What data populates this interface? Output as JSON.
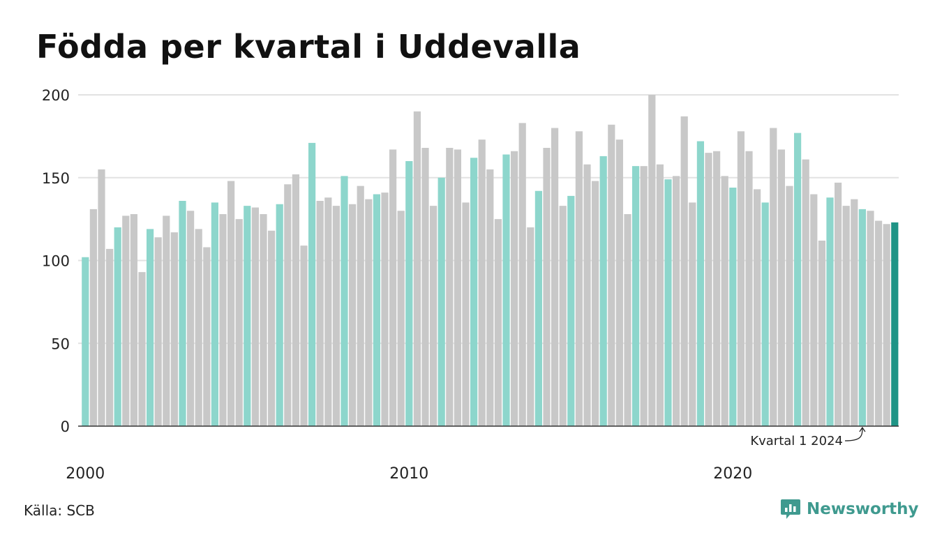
{
  "title": "Födda per kvartal i Uddevalla",
  "source": "Källa: SCB",
  "brand": {
    "name": "Newsworthy",
    "icon": "bar-chart-speech-icon"
  },
  "colors": {
    "q1": "#8dd6cc",
    "other": "#c8c8c8",
    "latest": "#1f9486",
    "grid": "#e2e2e2",
    "axis": "#333333",
    "brand": "#3f9a8f"
  },
  "chart_data": {
    "type": "bar",
    "title": "Födda per kvartal i Uddevalla",
    "xlabel": "",
    "ylabel": "",
    "ylim": [
      0,
      200
    ],
    "yticks": [
      0,
      50,
      100,
      150,
      200
    ],
    "xticks": [
      "2000",
      "2010",
      "2020"
    ],
    "grid": true,
    "highlight": "first quarter of each year; latest quarter emphasized",
    "start_year": 2000,
    "values": [
      102,
      131,
      155,
      107,
      120,
      127,
      128,
      93,
      119,
      114,
      127,
      117,
      136,
      130,
      119,
      108,
      135,
      128,
      148,
      125,
      133,
      132,
      128,
      118,
      134,
      146,
      152,
      109,
      171,
      136,
      138,
      133,
      151,
      134,
      145,
      137,
      140,
      141,
      167,
      130,
      160,
      190,
      168,
      133,
      150,
      168,
      167,
      135,
      162,
      173,
      155,
      125,
      164,
      166,
      183,
      120,
      142,
      168,
      180,
      133,
      139,
      178,
      158,
      148,
      163,
      182,
      173,
      128,
      157,
      157,
      200,
      158,
      149,
      151,
      187,
      135,
      172,
      165,
      166,
      151,
      144,
      178,
      166,
      143,
      135,
      180,
      167,
      145,
      177,
      161,
      140,
      112,
      138,
      147,
      133,
      137,
      131,
      130,
      124,
      122,
      123
    ],
    "annotation": {
      "text": "Kvartal 1 2024",
      "target": "2024 Q1"
    }
  }
}
